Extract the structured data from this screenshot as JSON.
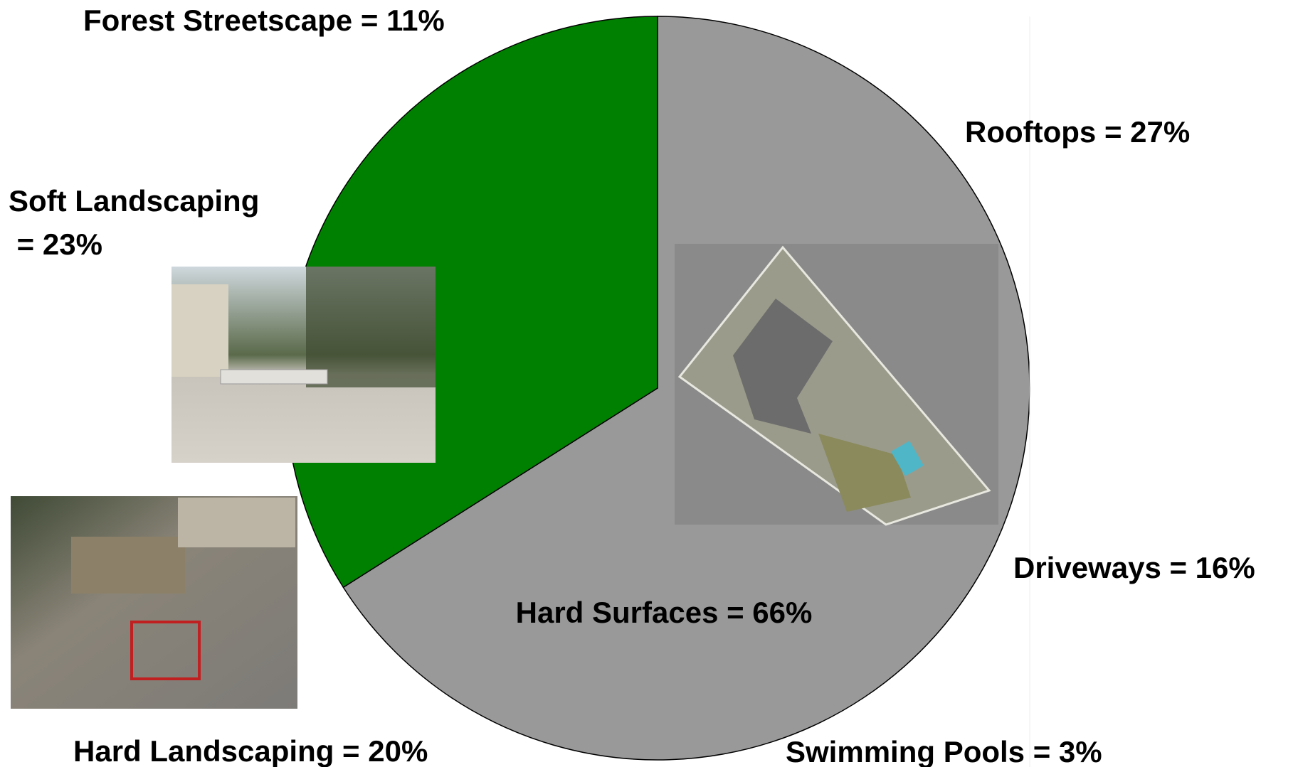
{
  "chart_data": {
    "type": "pie",
    "values": [
      66,
      34
    ],
    "value_labels": [
      "Hard Surfaces = 66%",
      null
    ],
    "colors": [
      "#999999",
      "#008000"
    ],
    "annotations": [
      {
        "lines": [
          "Forest Streetscape = 11%"
        ],
        "value": 11
      },
      {
        "lines": [
          "Soft Landscaping",
          " = 23%"
        ],
        "value": 23
      },
      {
        "lines": [
          "Rooftops = 27%"
        ],
        "value": 27
      },
      {
        "lines": [
          "Driveways = 16%"
        ],
        "value": 16
      },
      {
        "lines": [
          "Swimming Pools = 3%"
        ],
        "value": 3
      },
      {
        "lines": [
          "Hard Landscaping = 20%"
        ],
        "value": 20
      }
    ]
  }
}
